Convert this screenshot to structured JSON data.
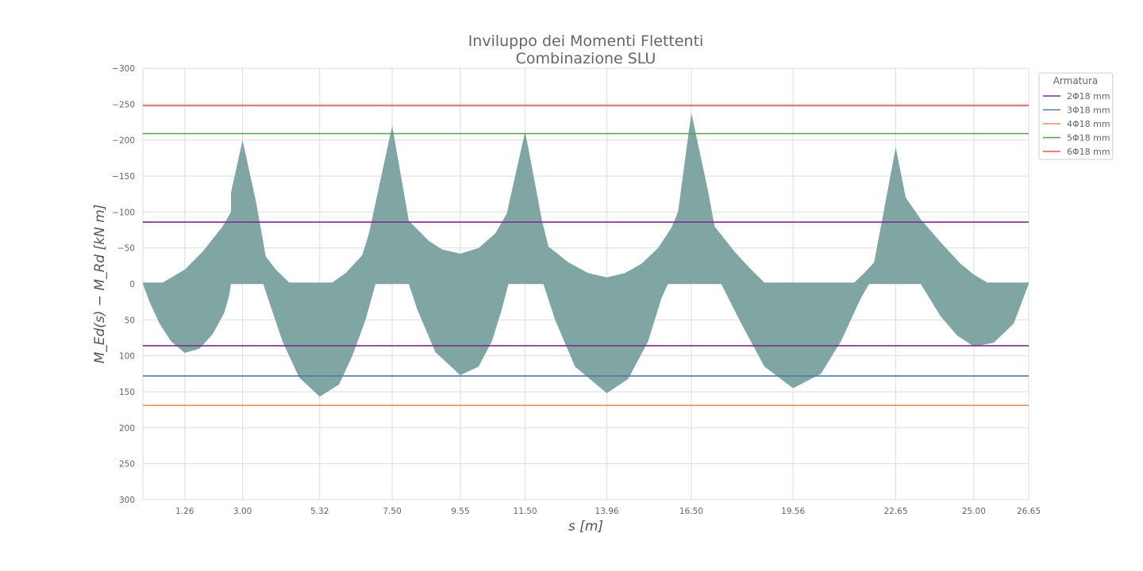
{
  "chart_data": {
    "type": "area",
    "title_line1": "Inviluppo dei Momenti Flettenti",
    "title_line2": "Combinazione SLU",
    "xlabel": "s [m]",
    "ylabel": "M_Ed(s) − M_Rd [kN m]",
    "xlim": [
      0.0,
      26.65
    ],
    "ylim_inverted": [
      -300,
      300
    ],
    "xticks": [
      "1.26",
      "3.00",
      "5.32",
      "7.50",
      "9.55",
      "11.50",
      "13.96",
      "16.50",
      "19.56",
      "22.65",
      "25.00",
      "26.65"
    ],
    "xtick_values": [
      1.26,
      3.0,
      5.32,
      7.5,
      9.55,
      11.5,
      13.96,
      16.5,
      19.56,
      22.65,
      25.0,
      26.65
    ],
    "yticks": [
      -300,
      -250,
      -200,
      -150,
      -100,
      -50,
      0,
      50,
      100,
      150,
      200,
      250,
      300
    ],
    "ytick_labels": [
      "−300",
      "−250",
      "−200",
      "−150",
      "−100",
      "−50",
      "0",
      "50",
      "100",
      "150",
      "200",
      "250",
      "300"
    ],
    "grid": true,
    "fill_color": "#7fa6a3",
    "envelope_upper": [
      [
        0.0,
        -2
      ],
      [
        0.6,
        -2
      ],
      [
        1.26,
        -20
      ],
      [
        1.8,
        -45
      ],
      [
        2.4,
        -80
      ],
      [
        2.65,
        -100
      ],
      [
        2.65,
        -127
      ],
      [
        3.0,
        -200
      ],
      [
        3.4,
        -115
      ],
      [
        3.7,
        -38
      ],
      [
        4.0,
        -20
      ],
      [
        4.4,
        -2
      ],
      [
        5.32,
        -2
      ],
      [
        5.7,
        -2
      ],
      [
        6.1,
        -15
      ],
      [
        6.6,
        -40
      ],
      [
        6.8,
        -70
      ],
      [
        7.5,
        -220
      ],
      [
        8.0,
        -88
      ],
      [
        8.6,
        -60
      ],
      [
        9.0,
        -48
      ],
      [
        9.55,
        -42
      ],
      [
        10.1,
        -50
      ],
      [
        10.6,
        -70
      ],
      [
        10.95,
        -98
      ],
      [
        11.5,
        -212
      ],
      [
        12.0,
        -90
      ],
      [
        12.2,
        -52
      ],
      [
        12.8,
        -30
      ],
      [
        13.4,
        -15
      ],
      [
        13.96,
        -9
      ],
      [
        14.5,
        -15
      ],
      [
        15.0,
        -28
      ],
      [
        15.5,
        -50
      ],
      [
        15.9,
        -78
      ],
      [
        16.1,
        -100
      ],
      [
        16.5,
        -238
      ],
      [
        17.0,
        -130
      ],
      [
        17.2,
        -80
      ],
      [
        17.8,
        -45
      ],
      [
        18.3,
        -20
      ],
      [
        18.7,
        -2
      ],
      [
        19.56,
        -2
      ],
      [
        21.0,
        -2
      ],
      [
        21.4,
        -2
      ],
      [
        21.7,
        -15
      ],
      [
        22.0,
        -30
      ],
      [
        22.65,
        -190
      ],
      [
        22.95,
        -120
      ],
      [
        23.4,
        -90
      ],
      [
        24.0,
        -58
      ],
      [
        24.6,
        -28
      ],
      [
        25.0,
        -13
      ],
      [
        25.4,
        -2
      ],
      [
        26.65,
        -2
      ]
    ],
    "envelope_lower": [
      [
        0.0,
        0
      ],
      [
        0.2,
        25
      ],
      [
        0.5,
        55
      ],
      [
        0.85,
        80
      ],
      [
        1.26,
        96
      ],
      [
        1.7,
        90
      ],
      [
        2.1,
        70
      ],
      [
        2.45,
        40
      ],
      [
        2.6,
        15
      ],
      [
        2.65,
        0
      ],
      [
        3.0,
        0
      ],
      [
        3.62,
        0
      ],
      [
        3.8,
        25
      ],
      [
        4.2,
        80
      ],
      [
        4.7,
        130
      ],
      [
        5.32,
        157
      ],
      [
        5.9,
        140
      ],
      [
        6.3,
        100
      ],
      [
        6.7,
        50
      ],
      [
        7.0,
        0
      ],
      [
        7.5,
        0
      ],
      [
        8.0,
        0
      ],
      [
        8.25,
        35
      ],
      [
        8.8,
        95
      ],
      [
        9.55,
        127
      ],
      [
        10.1,
        115
      ],
      [
        10.5,
        80
      ],
      [
        10.8,
        35
      ],
      [
        11.0,
        0
      ],
      [
        11.5,
        0
      ],
      [
        12.05,
        0
      ],
      [
        12.4,
        50
      ],
      [
        13.0,
        115
      ],
      [
        13.96,
        152
      ],
      [
        14.6,
        132
      ],
      [
        15.2,
        80
      ],
      [
        15.6,
        20
      ],
      [
        15.8,
        0
      ],
      [
        16.5,
        0
      ],
      [
        17.4,
        0
      ],
      [
        18.0,
        55
      ],
      [
        18.7,
        115
      ],
      [
        19.56,
        145
      ],
      [
        20.4,
        125
      ],
      [
        21.0,
        80
      ],
      [
        21.6,
        20
      ],
      [
        21.85,
        0
      ],
      [
        22.65,
        0
      ],
      [
        23.4,
        0
      ],
      [
        24.0,
        45
      ],
      [
        24.5,
        72
      ],
      [
        25.0,
        87
      ],
      [
        25.6,
        82
      ],
      [
        26.2,
        55
      ],
      [
        26.65,
        0
      ]
    ],
    "series": [
      {
        "name": "2Φ18 mm",
        "color": "#7b2d8e",
        "values": [
          -86,
          86
        ]
      },
      {
        "name": "3Φ18 mm",
        "color": "#4e79a7",
        "values": [
          128
        ]
      },
      {
        "name": "4Φ18 mm",
        "color": "#f28e5b",
        "values": [
          169
        ]
      },
      {
        "name": "5Φ18 mm",
        "color": "#59a14f",
        "values": [
          -209
        ]
      },
      {
        "name": "6Φ18 mm",
        "color": "#e15759",
        "values": [
          -248
        ]
      }
    ],
    "legend": {
      "title": "Armatura",
      "placement": "upper-right-outside"
    }
  }
}
